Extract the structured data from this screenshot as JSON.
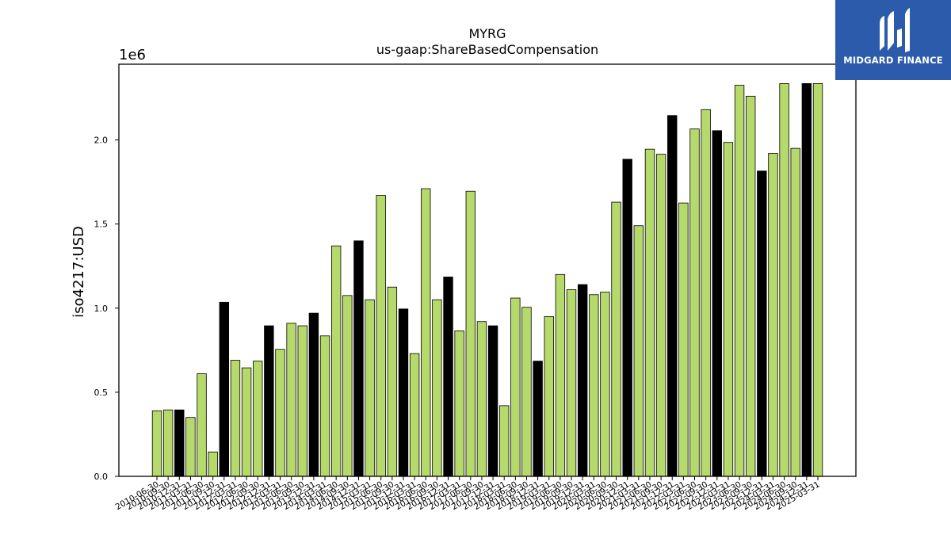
{
  "chart_data": {
    "type": "bar",
    "title": "MYRG",
    "subtitle": "us-gaap:ShareBasedCompensation",
    "ylabel": "iso4217:USD",
    "xlabel": "",
    "offset_label": "1e6",
    "ylim": [
      0,
      2450000
    ],
    "yticks": [
      0,
      500000,
      1000000,
      1500000,
      2000000
    ],
    "ytick_labels": [
      "0.0",
      "0.5",
      "1.0",
      "1.5",
      "2.0"
    ],
    "grid": false,
    "colors": {
      "quarter": "#b5d96b",
      "annual": "#000000",
      "edge": "#000000"
    },
    "bars": [
      {
        "date": "2010-06-30",
        "value": 390000,
        "kind": "quarter"
      },
      {
        "date": "2010-09-30",
        "value": 395000,
        "kind": "quarter"
      },
      {
        "date": "2010-12-31",
        "value": 395000,
        "kind": "annual"
      },
      {
        "date": "2011-03-31",
        "value": 350000,
        "kind": "quarter"
      },
      {
        "date": "2011-06-30",
        "value": 610000,
        "kind": "quarter"
      },
      {
        "date": "2011-09-30",
        "value": 145000,
        "kind": "quarter"
      },
      {
        "date": "2011-12-31",
        "value": 1035000,
        "kind": "annual"
      },
      {
        "date": "2012-03-31",
        "value": 690000,
        "kind": "quarter"
      },
      {
        "date": "2012-06-30",
        "value": 645000,
        "kind": "quarter"
      },
      {
        "date": "2012-09-30",
        "value": 685000,
        "kind": "quarter"
      },
      {
        "date": "2012-12-31",
        "value": 895000,
        "kind": "annual"
      },
      {
        "date": "2013-03-31",
        "value": 755000,
        "kind": "quarter"
      },
      {
        "date": "2013-06-30",
        "value": 910000,
        "kind": "quarter"
      },
      {
        "date": "2013-09-30",
        "value": 895000,
        "kind": "quarter"
      },
      {
        "date": "2013-12-31",
        "value": 970000,
        "kind": "annual"
      },
      {
        "date": "2014-03-31",
        "value": 835000,
        "kind": "quarter"
      },
      {
        "date": "2014-06-30",
        "value": 1370000,
        "kind": "quarter"
      },
      {
        "date": "2014-09-30",
        "value": 1075000,
        "kind": "quarter"
      },
      {
        "date": "2014-12-31",
        "value": 1400000,
        "kind": "annual"
      },
      {
        "date": "2015-03-31",
        "value": 1050000,
        "kind": "quarter"
      },
      {
        "date": "2015-06-30",
        "value": 1670000,
        "kind": "quarter"
      },
      {
        "date": "2015-09-30",
        "value": 1125000,
        "kind": "quarter"
      },
      {
        "date": "2015-12-31",
        "value": 995000,
        "kind": "annual"
      },
      {
        "date": "2016-03-31",
        "value": 730000,
        "kind": "quarter"
      },
      {
        "date": "2016-06-30",
        "value": 1710000,
        "kind": "quarter"
      },
      {
        "date": "2016-09-30",
        "value": 1050000,
        "kind": "quarter"
      },
      {
        "date": "2016-12-31",
        "value": 1185000,
        "kind": "annual"
      },
      {
        "date": "2017-03-31",
        "value": 865000,
        "kind": "quarter"
      },
      {
        "date": "2017-06-30",
        "value": 1695000,
        "kind": "quarter"
      },
      {
        "date": "2017-09-30",
        "value": 920000,
        "kind": "quarter"
      },
      {
        "date": "2017-12-31",
        "value": 895000,
        "kind": "annual"
      },
      {
        "date": "2018-03-31",
        "value": 420000,
        "kind": "quarter"
      },
      {
        "date": "2018-06-30",
        "value": 1060000,
        "kind": "quarter"
      },
      {
        "date": "2018-09-30",
        "value": 1005000,
        "kind": "quarter"
      },
      {
        "date": "2018-12-31",
        "value": 685000,
        "kind": "annual"
      },
      {
        "date": "2019-03-31",
        "value": 950000,
        "kind": "quarter"
      },
      {
        "date": "2019-06-30",
        "value": 1200000,
        "kind": "quarter"
      },
      {
        "date": "2019-09-30",
        "value": 1110000,
        "kind": "quarter"
      },
      {
        "date": "2019-12-31",
        "value": 1140000,
        "kind": "annual"
      },
      {
        "date": "2020-03-31",
        "value": 1080000,
        "kind": "quarter"
      },
      {
        "date": "2020-06-30",
        "value": 1095000,
        "kind": "quarter"
      },
      {
        "date": "2020-09-30",
        "value": 1630000,
        "kind": "quarter"
      },
      {
        "date": "2020-12-31",
        "value": 1885000,
        "kind": "annual"
      },
      {
        "date": "2021-03-31",
        "value": 1490000,
        "kind": "quarter"
      },
      {
        "date": "2021-06-30",
        "value": 1945000,
        "kind": "quarter"
      },
      {
        "date": "2021-09-30",
        "value": 1915000,
        "kind": "quarter"
      },
      {
        "date": "2021-12-31",
        "value": 2145000,
        "kind": "annual"
      },
      {
        "date": "2022-03-31",
        "value": 1625000,
        "kind": "quarter"
      },
      {
        "date": "2022-06-30",
        "value": 2065000,
        "kind": "quarter"
      },
      {
        "date": "2022-09-30",
        "value": 2180000,
        "kind": "quarter"
      },
      {
        "date": "2022-12-31",
        "value": 2055000,
        "kind": "annual"
      },
      {
        "date": "2023-03-31",
        "value": 1985000,
        "kind": "quarter"
      },
      {
        "date": "2023-06-30",
        "value": 2325000,
        "kind": "quarter"
      },
      {
        "date": "2023-09-30",
        "value": 2260000,
        "kind": "quarter"
      },
      {
        "date": "2023-12-31",
        "value": 1815000,
        "kind": "annual"
      },
      {
        "date": "2024-03-31",
        "value": 1920000,
        "kind": "quarter"
      },
      {
        "date": "2024-06-30",
        "value": 2335000,
        "kind": "quarter"
      },
      {
        "date": "2024-09-30",
        "value": 1950000,
        "kind": "quarter"
      },
      {
        "date": "2024-12-31",
        "value": 2335000,
        "kind": "annual"
      },
      {
        "date": "2025-03-31",
        "value": 2335000,
        "kind": "quarter"
      }
    ]
  },
  "logo": {
    "text": "MIDGARD FINANCE"
  }
}
